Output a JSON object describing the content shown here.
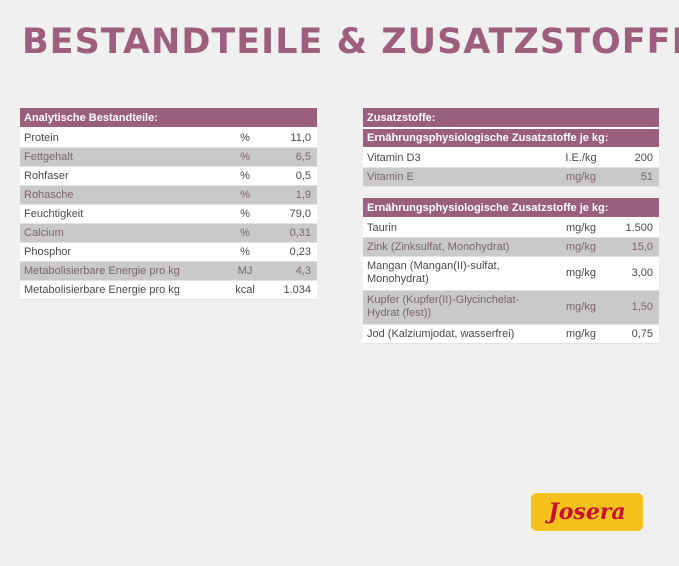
{
  "title": "Bestandteile & Zusatzstoffe",
  "analytical": {
    "header": "Analytische Bestandteile:",
    "rows": [
      {
        "name": "Protein",
        "unit": "%",
        "value": "11,0"
      },
      {
        "name": "Fettgehalt",
        "unit": "%",
        "value": "6,5"
      },
      {
        "name": "Rohfaser",
        "unit": "%",
        "value": "0,5"
      },
      {
        "name": "Rohasche",
        "unit": "%",
        "value": "1,9"
      },
      {
        "name": "Feuchtigkeit",
        "unit": "%",
        "value": "79,0"
      },
      {
        "name": "Calcium",
        "unit": "%",
        "value": "0,31"
      },
      {
        "name": "Phosphor",
        "unit": "%",
        "value": "0,23"
      },
      {
        "name": "Metabolisierbare Energie pro kg",
        "unit": "MJ",
        "value": "4,3"
      },
      {
        "name": "Metabolisierbare Energie pro kg",
        "unit": "kcal",
        "value": "1.034"
      }
    ]
  },
  "additives": {
    "header": "Zusatzstoffe:",
    "sub1": "Ernährungsphysiologische Zusatzstoffe je kg:",
    "vitamins": [
      {
        "name": "Vitamin D3",
        "unit": "I.E./kg",
        "value": "200"
      },
      {
        "name": "Vitamin E",
        "unit": "mg/kg",
        "value": "51"
      }
    ],
    "sub2": "Ernährungsphysiologische Zusatzstoffe je kg:",
    "minerals": [
      {
        "name": "Taurin",
        "unit": "mg/kg",
        "value": "1.500"
      },
      {
        "name": "Zink (Zinksulfat, Monohydrat)",
        "unit": "mg/kg",
        "value": "15,0"
      },
      {
        "name": "Mangan (Mangan(II)-sulfat, Monohydrat)",
        "unit": "mg/kg",
        "value": "3,00"
      },
      {
        "name": "Kupfer (Kupfer(II)-Glycinchelat-Hydrat (fest))",
        "unit": "mg/kg",
        "value": "1,50"
      },
      {
        "name": "Jod (Kalziumjodat, wasserfrei)",
        "unit": "mg/kg",
        "value": "0,75"
      }
    ]
  },
  "logo": "Josera"
}
